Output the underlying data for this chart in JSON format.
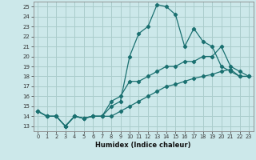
{
  "xlabel": "Humidex (Indice chaleur)",
  "bg_color": "#cce8ea",
  "grid_color": "#aacccc",
  "line_color": "#1a7070",
  "xlim": [
    -0.5,
    23.5
  ],
  "ylim": [
    12.5,
    25.5
  ],
  "xticks": [
    0,
    1,
    2,
    3,
    4,
    5,
    6,
    7,
    8,
    9,
    10,
    11,
    12,
    13,
    14,
    15,
    16,
    17,
    18,
    19,
    20,
    21,
    22,
    23
  ],
  "yticks": [
    13,
    14,
    15,
    16,
    17,
    18,
    19,
    20,
    21,
    22,
    23,
    24,
    25
  ],
  "series": [
    {
      "x": [
        0,
        1,
        2,
        3,
        4,
        5,
        6,
        7,
        8,
        9,
        10,
        11,
        12,
        13,
        14,
        15,
        16,
        17,
        18,
        19,
        20,
        21,
        22,
        23
      ],
      "y": [
        14.5,
        14.0,
        14.0,
        13.0,
        14.0,
        13.8,
        14.0,
        14.0,
        15.0,
        15.5,
        20.0,
        22.3,
        23.0,
        25.2,
        25.0,
        24.2,
        21.0,
        22.8,
        21.5,
        21.0,
        19.0,
        18.5,
        18.0,
        18.0
      ]
    },
    {
      "x": [
        0,
        1,
        2,
        3,
        4,
        5,
        6,
        7,
        8,
        9,
        10,
        11,
        12,
        13,
        14,
        15,
        16,
        17,
        18,
        19,
        20,
        21,
        22,
        23
      ],
      "y": [
        14.5,
        14.0,
        14.0,
        13.0,
        14.0,
        13.8,
        14.0,
        14.0,
        15.5,
        16.0,
        17.5,
        17.5,
        18.0,
        18.5,
        19.0,
        19.0,
        19.5,
        19.5,
        20.0,
        20.0,
        21.0,
        19.0,
        18.5,
        18.0
      ]
    },
    {
      "x": [
        0,
        1,
        2,
        3,
        4,
        5,
        6,
        7,
        8,
        9,
        10,
        11,
        12,
        13,
        14,
        15,
        16,
        17,
        18,
        19,
        20,
        21,
        22,
        23
      ],
      "y": [
        14.5,
        14.0,
        14.0,
        13.0,
        14.0,
        13.8,
        14.0,
        14.0,
        14.0,
        14.5,
        15.0,
        15.5,
        16.0,
        16.5,
        17.0,
        17.2,
        17.5,
        17.8,
        18.0,
        18.2,
        18.5,
        18.7,
        18.0,
        18.0
      ]
    }
  ]
}
